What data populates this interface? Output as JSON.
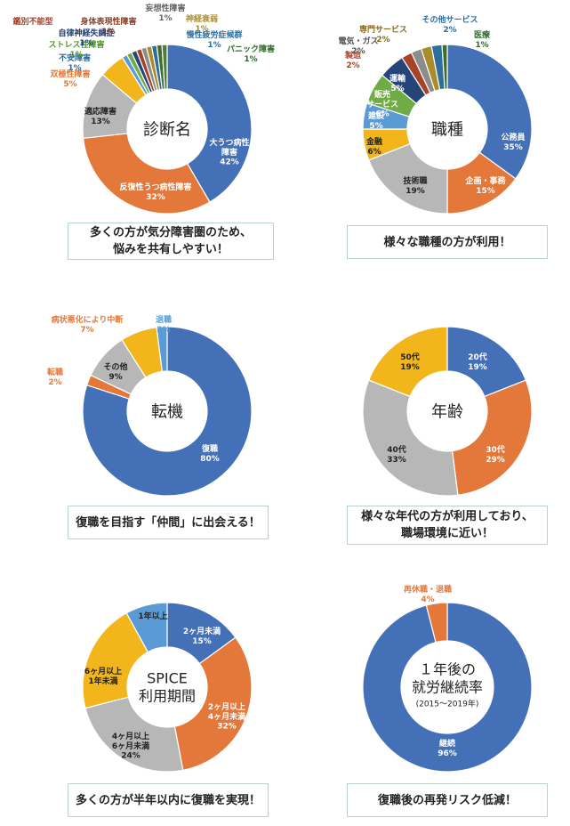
{
  "chart_data": [
    {
      "type": "pie",
      "title": "診断名",
      "caption": "多くの方が気分障害圏のため、\n悩みを共有しやすい！",
      "slices": [
        {
          "label": "大うつ病性\n障害",
          "pct": "42%",
          "value": 42,
          "color": "#4470b7"
        },
        {
          "label": "反復性うつ病性障害",
          "pct": "32%",
          "value": 32,
          "color": "#e3783a"
        },
        {
          "label": "適応障害",
          "pct": "13%",
          "value": 13,
          "color": "#b7b7b7"
        },
        {
          "label": "双極性障害",
          "pct": "5%",
          "value": 5,
          "color": "#f2b51c"
        },
        {
          "label": "不安障害",
          "pct": "1%",
          "value": 1,
          "color": "#5b9bd5"
        },
        {
          "label": "ストレス性障害",
          "pct": "1%",
          "value": 1,
          "color": "#6fac46"
        },
        {
          "label": "自律神経失調症",
          "pct": "1%",
          "value": 1,
          "color": "#254478"
        },
        {
          "label": "鑑別不能型",
          "pct": "",
          "value": 1,
          "color": "#a5432b"
        },
        {
          "label": "身体表現性障害",
          "pct": "1%",
          "value": 1,
          "color": "#8c8c8c"
        },
        {
          "label": "妄想性障害",
          "pct": "1%",
          "value": 1,
          "color": "#a98d2a"
        },
        {
          "label": "神経衰弱",
          "pct": "1%",
          "value": 1,
          "color": "#2e6e9e"
        },
        {
          "label": "慢性疲労症候群",
          "pct": "1%",
          "value": 1,
          "color": "#3e6e2a"
        },
        {
          "label": "パニック障害",
          "pct": "1%",
          "value": 1,
          "color": "#4e7f3a"
        }
      ]
    },
    {
      "type": "pie",
      "title": "職種",
      "caption": "様々な職種の方が利用！",
      "slices": [
        {
          "label": "公務員",
          "pct": "35%",
          "value": 35,
          "color": "#4470b7"
        },
        {
          "label": "企画・事務",
          "pct": "15%",
          "value": 15,
          "color": "#e3783a"
        },
        {
          "label": "技術職",
          "pct": "19%",
          "value": 19,
          "color": "#b7b7b7"
        },
        {
          "label": "金融",
          "pct": "6%",
          "value": 6,
          "color": "#f2b51c"
        },
        {
          "label": "建設",
          "pct": "5%",
          "value": 5,
          "color": "#5b9bd5"
        },
        {
          "label": "販売\nサービス",
          "pct": "6%",
          "value": 6,
          "color": "#6fac46"
        },
        {
          "label": "運輸",
          "pct": "5%",
          "value": 5,
          "color": "#254478"
        },
        {
          "label": "製造",
          "pct": "2%",
          "value": 2,
          "color": "#a5432b"
        },
        {
          "label": "電気・ガス",
          "pct": "2%",
          "value": 2,
          "color": "#8c8c8c"
        },
        {
          "label": "専門サービス",
          "pct": "2%",
          "value": 2,
          "color": "#a98d2a"
        },
        {
          "label": "その他サービス",
          "pct": "2%",
          "value": 2,
          "color": "#2e6e9e"
        },
        {
          "label": "医療",
          "pct": "1%",
          "value": 1,
          "color": "#3e6e2a"
        }
      ]
    },
    {
      "type": "pie",
      "title": "転機",
      "caption": "復職を目指す「仲間」に出会える！",
      "slices": [
        {
          "label": "復職",
          "pct": "80%",
          "value": 80,
          "color": "#4470b7"
        },
        {
          "label": "転職",
          "pct": "2%",
          "value": 2,
          "color": "#e3783a"
        },
        {
          "label": "その他",
          "pct": "9%",
          "value": 9,
          "color": "#b7b7b7"
        },
        {
          "label": "病状悪化により中断",
          "pct": "7%",
          "value": 7,
          "color": "#f2b51c"
        },
        {
          "label": "退職",
          "pct": "2%",
          "value": 2,
          "color": "#5b9bd5"
        }
      ]
    },
    {
      "type": "pie",
      "title": "年齢",
      "caption": "様々な年代の方が利用しており、\n職場環境に近い！",
      "slices": [
        {
          "label": "20代",
          "pct": "19%",
          "value": 19,
          "color": "#4470b7"
        },
        {
          "label": "30代",
          "pct": "29%",
          "value": 29,
          "color": "#e3783a"
        },
        {
          "label": "40代",
          "pct": "33%",
          "value": 33,
          "color": "#b7b7b7"
        },
        {
          "label": "50代",
          "pct": "19%",
          "value": 19,
          "color": "#f2b51c"
        }
      ]
    },
    {
      "type": "pie",
      "title": "SPICE\n利用期間",
      "caption": "多くの方が半年以内に復職を実現！",
      "slices": [
        {
          "label": "2ヶ月未満",
          "pct": "15%",
          "value": 15,
          "color": "#4470b7"
        },
        {
          "label": "2ヶ月以上\n4ヶ月未満",
          "pct": "32%",
          "value": 32,
          "color": "#e3783a"
        },
        {
          "label": "4ヶ月以上\n6ヶ月未満",
          "pct": "24%",
          "value": 24,
          "color": "#b7b7b7"
        },
        {
          "label": "6ヶ月以上\n1年未満",
          "pct": "",
          "value": 21,
          "color": "#f2b51c"
        },
        {
          "label": "1年以上",
          "pct": "",
          "value": 8,
          "color": "#5b9bd5"
        }
      ]
    },
    {
      "type": "pie",
      "title": "１年後の\n就労継続率",
      "subtitle": "(2015～2019年)",
      "caption": "復職後の再発リスク低減！",
      "slices": [
        {
          "label": "継続",
          "pct": "96%",
          "value": 96,
          "color": "#4470b7"
        },
        {
          "label": "再休職・退職",
          "pct": "4%",
          "value": 4,
          "color": "#e3783a"
        }
      ]
    }
  ]
}
